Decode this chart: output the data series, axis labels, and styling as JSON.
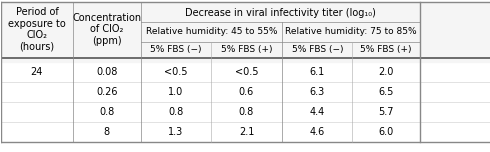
{
  "header_row1_col1": "Period of\nexposure to\nClO₂\n(hours)",
  "header_row1_col2": "Concentration\nof ClO₂\n(ppm)",
  "header_top": "Decrease in viral infectivity titer (log₁₀)",
  "header_rh1": "Relative humidity: 45 to 55%",
  "header_rh2": "Relative humidity: 75 to 85%",
  "header_fbs_minus1": "5% FBS (−)",
  "header_fbs_plus1": "5% FBS (+)",
  "header_fbs_minus2": "5% FBS (−)",
  "header_fbs_plus2": "5% FBS (+)",
  "rows": [
    {
      "period": "24",
      "conc": "0.08",
      "rh1_minus": "<0.5",
      "rh1_plus": "<0.5",
      "rh2_minus": "6.1",
      "rh2_plus": "2.0"
    },
    {
      "period": "",
      "conc": "0.26",
      "rh1_minus": "1.0",
      "rh1_plus": "0.6",
      "rh2_minus": "6.3",
      "rh2_plus": "6.5"
    },
    {
      "period": "",
      "conc": "0.8",
      "rh1_minus": "0.8",
      "rh1_plus": "0.8",
      "rh2_minus": "4.4",
      "rh2_plus": "5.7"
    },
    {
      "period": "",
      "conc": "8",
      "rh1_minus": "1.3",
      "rh1_plus": "2.1",
      "rh2_minus": "4.6",
      "rh2_plus": "6.0"
    }
  ],
  "bg_color": "#f0f0f0",
  "header_bg": "#e8e8e8",
  "line_color": "#888888",
  "font_size": 7.0,
  "header_font_size": 7.0
}
